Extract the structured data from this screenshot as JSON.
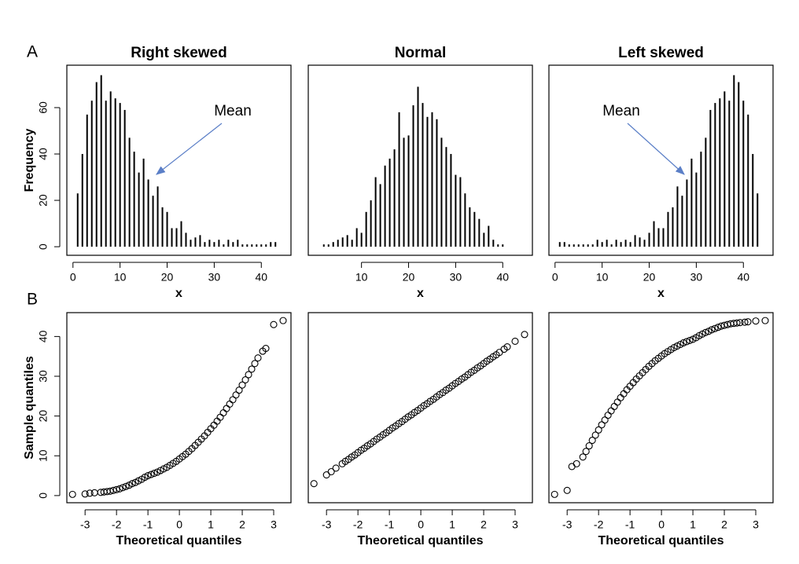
{
  "chart_data": [
    {
      "type": "bar",
      "panel_label": "A",
      "title": "Right skewed",
      "xlabel": "x",
      "ylabel": "Frequency",
      "annotation": "Mean",
      "x": [
        1,
        2,
        3,
        4,
        5,
        6,
        7,
        8,
        9,
        10,
        11,
        12,
        13,
        14,
        15,
        16,
        17,
        18,
        19,
        20,
        21,
        22,
        23,
        24,
        25,
        26,
        27,
        28,
        29,
        30,
        31,
        32,
        33,
        34,
        35,
        36,
        37,
        38,
        39,
        40,
        41,
        42,
        43
      ],
      "values": [
        23,
        40,
        57,
        63,
        71,
        74,
        63,
        67,
        64,
        62,
        59,
        47,
        41,
        32,
        38,
        29,
        22,
        26,
        17,
        15,
        8,
        8,
        11,
        6,
        3,
        4,
        5,
        2,
        3,
        2,
        3,
        1,
        3,
        2,
        3,
        1,
        1,
        1,
        1,
        1,
        1,
        2,
        2
      ],
      "color": "#000000",
      "xlim": [
        -1.3,
        46.3
      ],
      "ylim": [
        -3.7,
        78.3
      ],
      "xticks": [
        0,
        10,
        20,
        30,
        40
      ],
      "yticks": [
        0,
        20,
        40,
        60
      ]
    },
    {
      "type": "bar",
      "title": "Normal",
      "xlabel": "x",
      "x": [
        2,
        3,
        4,
        5,
        6,
        7,
        8,
        9,
        10,
        11,
        12,
        13,
        14,
        15,
        16,
        17,
        18,
        19,
        20,
        21,
        22,
        23,
        24,
        25,
        26,
        27,
        28,
        29,
        30,
        31,
        32,
        33,
        34,
        35,
        36,
        37,
        38,
        39,
        40
      ],
      "values": [
        1,
        1,
        2,
        3,
        4,
        5,
        3,
        8,
        6,
        15,
        20,
        30,
        27,
        35,
        38,
        42,
        58,
        47,
        48,
        61,
        69,
        62,
        56,
        58,
        55,
        47,
        43,
        40,
        31,
        30,
        23,
        17,
        15,
        12,
        6,
        9,
        3,
        1,
        1
      ],
      "color": "#000000",
      "xlim": [
        -1.3,
        46.3
      ],
      "ylim": [
        -3.7,
        78.3
      ],
      "xticks": [
        10,
        20,
        30,
        40
      ]
    },
    {
      "type": "bar",
      "title": "Left skewed",
      "xlabel": "x",
      "annotation": "Mean",
      "x": [
        1,
        2,
        3,
        4,
        5,
        6,
        7,
        8,
        9,
        10,
        11,
        12,
        13,
        14,
        15,
        16,
        17,
        18,
        19,
        20,
        21,
        22,
        23,
        24,
        25,
        26,
        27,
        28,
        29,
        30,
        31,
        32,
        33,
        34,
        35,
        36,
        37,
        38,
        39,
        40,
        41,
        42,
        43
      ],
      "values": [
        2,
        2,
        1,
        1,
        1,
        1,
        1,
        1,
        3,
        2,
        3,
        1,
        3,
        2,
        3,
        2,
        5,
        4,
        3,
        6,
        11,
        8,
        8,
        15,
        17,
        26,
        22,
        29,
        38,
        32,
        41,
        47,
        59,
        62,
        64,
        67,
        63,
        74,
        71,
        63,
        57,
        40,
        23
      ],
      "color": "#000000",
      "xlim": [
        -1.3,
        46.3
      ],
      "ylim": [
        -3.7,
        78.3
      ],
      "xticks": [
        0,
        10,
        20,
        30,
        40
      ]
    },
    {
      "type": "scatter",
      "panel_label": "B",
      "xlabel": "Theoretical quantiles",
      "ylabel": "Sample quantiles",
      "x": [
        -3.4,
        -3.0,
        -2.85,
        -2.7,
        -2.5,
        -2.4,
        -2.3,
        -2.2,
        -2.1,
        -2.0,
        -1.9,
        -1.8,
        -1.7,
        -1.6,
        -1.5,
        -1.4,
        -1.3,
        -1.2,
        -1.1,
        -1.0,
        -0.9,
        -0.8,
        -0.7,
        -0.6,
        -0.5,
        -0.4,
        -0.3,
        -0.2,
        -0.1,
        0,
        0.1,
        0.2,
        0.3,
        0.4,
        0.5,
        0.6,
        0.7,
        0.8,
        0.9,
        1.0,
        1.1,
        1.2,
        1.3,
        1.4,
        1.5,
        1.6,
        1.7,
        1.8,
        1.9,
        2.0,
        2.1,
        2.2,
        2.3,
        2.4,
        2.5,
        2.65,
        2.75,
        3.0,
        3.3
      ],
      "values": [
        0.3,
        0.4,
        0.6,
        0.7,
        0.8,
        0.9,
        1.0,
        1.1,
        1.3,
        1.5,
        1.7,
        2.0,
        2.3,
        2.6,
        3.0,
        3.3,
        3.7,
        4.1,
        4.6,
        5.0,
        5.3,
        5.6,
        5.9,
        6.3,
        6.7,
        7.1,
        7.6,
        8.1,
        8.6,
        9.2,
        9.8,
        10.4,
        11.1,
        11.8,
        12.6,
        13.4,
        14.2,
        15.0,
        15.9,
        16.8,
        17.7,
        18.7,
        19.7,
        20.8,
        21.9,
        23.0,
        24.1,
        25.3,
        26.5,
        27.8,
        29.1,
        30.4,
        31.8,
        33.2,
        34.6,
        36.3,
        37.0,
        43.0,
        44.0
      ],
      "color": "#000000",
      "xlim": [
        -3.58,
        3.55
      ],
      "ylim": [
        -1.8,
        46
      ],
      "xticks": [
        -3,
        -2,
        -1,
        0,
        1,
        2,
        3
      ],
      "yticks": [
        0,
        10,
        20,
        30,
        40
      ]
    },
    {
      "type": "scatter",
      "xlabel": "Theoretical quantiles",
      "x": [
        -3.4,
        -3.0,
        -2.85,
        -2.7,
        -2.5,
        -2.4,
        -2.3,
        -2.2,
        -2.1,
        -2.0,
        -1.9,
        -1.8,
        -1.7,
        -1.6,
        -1.5,
        -1.4,
        -1.3,
        -1.2,
        -1.1,
        -1.0,
        -0.9,
        -0.8,
        -0.7,
        -0.6,
        -0.5,
        -0.4,
        -0.3,
        -0.2,
        -0.1,
        0,
        0.1,
        0.2,
        0.3,
        0.4,
        0.5,
        0.6,
        0.7,
        0.8,
        0.9,
        1.0,
        1.1,
        1.2,
        1.3,
        1.4,
        1.5,
        1.6,
        1.7,
        1.8,
        1.9,
        2.0,
        2.1,
        2.2,
        2.3,
        2.4,
        2.5,
        2.65,
        2.75,
        3.0,
        3.3
      ],
      "values": [
        3.0,
        5.2,
        6.0,
        6.9,
        8.0,
        8.6,
        9.1,
        9.7,
        10.2,
        10.8,
        11.4,
        11.9,
        12.5,
        13.0,
        13.6,
        14.2,
        14.7,
        15.3,
        15.8,
        16.4,
        17.0,
        17.5,
        18.1,
        18.6,
        19.2,
        19.8,
        20.3,
        20.9,
        21.4,
        22.0,
        22.6,
        23.1,
        23.7,
        24.2,
        24.8,
        25.4,
        25.9,
        26.5,
        27.0,
        27.6,
        28.2,
        28.7,
        29.3,
        29.8,
        30.4,
        31.0,
        31.5,
        32.1,
        32.6,
        33.2,
        33.8,
        34.3,
        34.9,
        35.4,
        36.0,
        36.8,
        37.4,
        38.8,
        40.5
      ],
      "color": "#000000",
      "xlim": [
        -3.58,
        3.55
      ],
      "ylim": [
        -1.8,
        46
      ],
      "xticks": [
        -3,
        -2,
        -1,
        0,
        1,
        2,
        3
      ]
    },
    {
      "type": "scatter",
      "xlabel": "Theoretical quantiles",
      "x": [
        -3.4,
        -3.0,
        -2.85,
        -2.7,
        -2.5,
        -2.4,
        -2.3,
        -2.2,
        -2.1,
        -2.0,
        -1.9,
        -1.8,
        -1.7,
        -1.6,
        -1.5,
        -1.4,
        -1.3,
        -1.2,
        -1.1,
        -1.0,
        -0.9,
        -0.8,
        -0.7,
        -0.6,
        -0.5,
        -0.4,
        -0.3,
        -0.2,
        -0.1,
        0,
        0.1,
        0.2,
        0.3,
        0.4,
        0.5,
        0.6,
        0.7,
        0.8,
        0.9,
        1.0,
        1.1,
        1.2,
        1.3,
        1.4,
        1.5,
        1.6,
        1.7,
        1.8,
        1.9,
        2.0,
        2.1,
        2.2,
        2.3,
        2.4,
        2.5,
        2.65,
        2.75,
        3.0,
        3.3
      ],
      "values": [
        0.3,
        1.3,
        7.3,
        8.0,
        9.7,
        11.1,
        12.5,
        13.9,
        15.2,
        16.5,
        17.8,
        19.0,
        20.2,
        21.3,
        22.4,
        23.5,
        24.6,
        25.6,
        26.6,
        27.5,
        28.4,
        29.3,
        30.1,
        30.9,
        31.7,
        32.5,
        33.2,
        33.9,
        34.5,
        35.1,
        35.7,
        36.2,
        36.7,
        37.2,
        37.6,
        38.0,
        38.4,
        38.7,
        39.0,
        39.3,
        39.7,
        40.2,
        40.6,
        41.0,
        41.3,
        41.7,
        42.0,
        42.3,
        42.6,
        42.8,
        43.0,
        43.2,
        43.3,
        43.4,
        43.5,
        43.6,
        43.7,
        43.9,
        44.0
      ],
      "color": "#000000",
      "xlim": [
        -3.58,
        3.55
      ],
      "ylim": [
        -1.8,
        46
      ],
      "xticks": [
        -3,
        -2,
        -1,
        0,
        1,
        2,
        3
      ]
    }
  ]
}
